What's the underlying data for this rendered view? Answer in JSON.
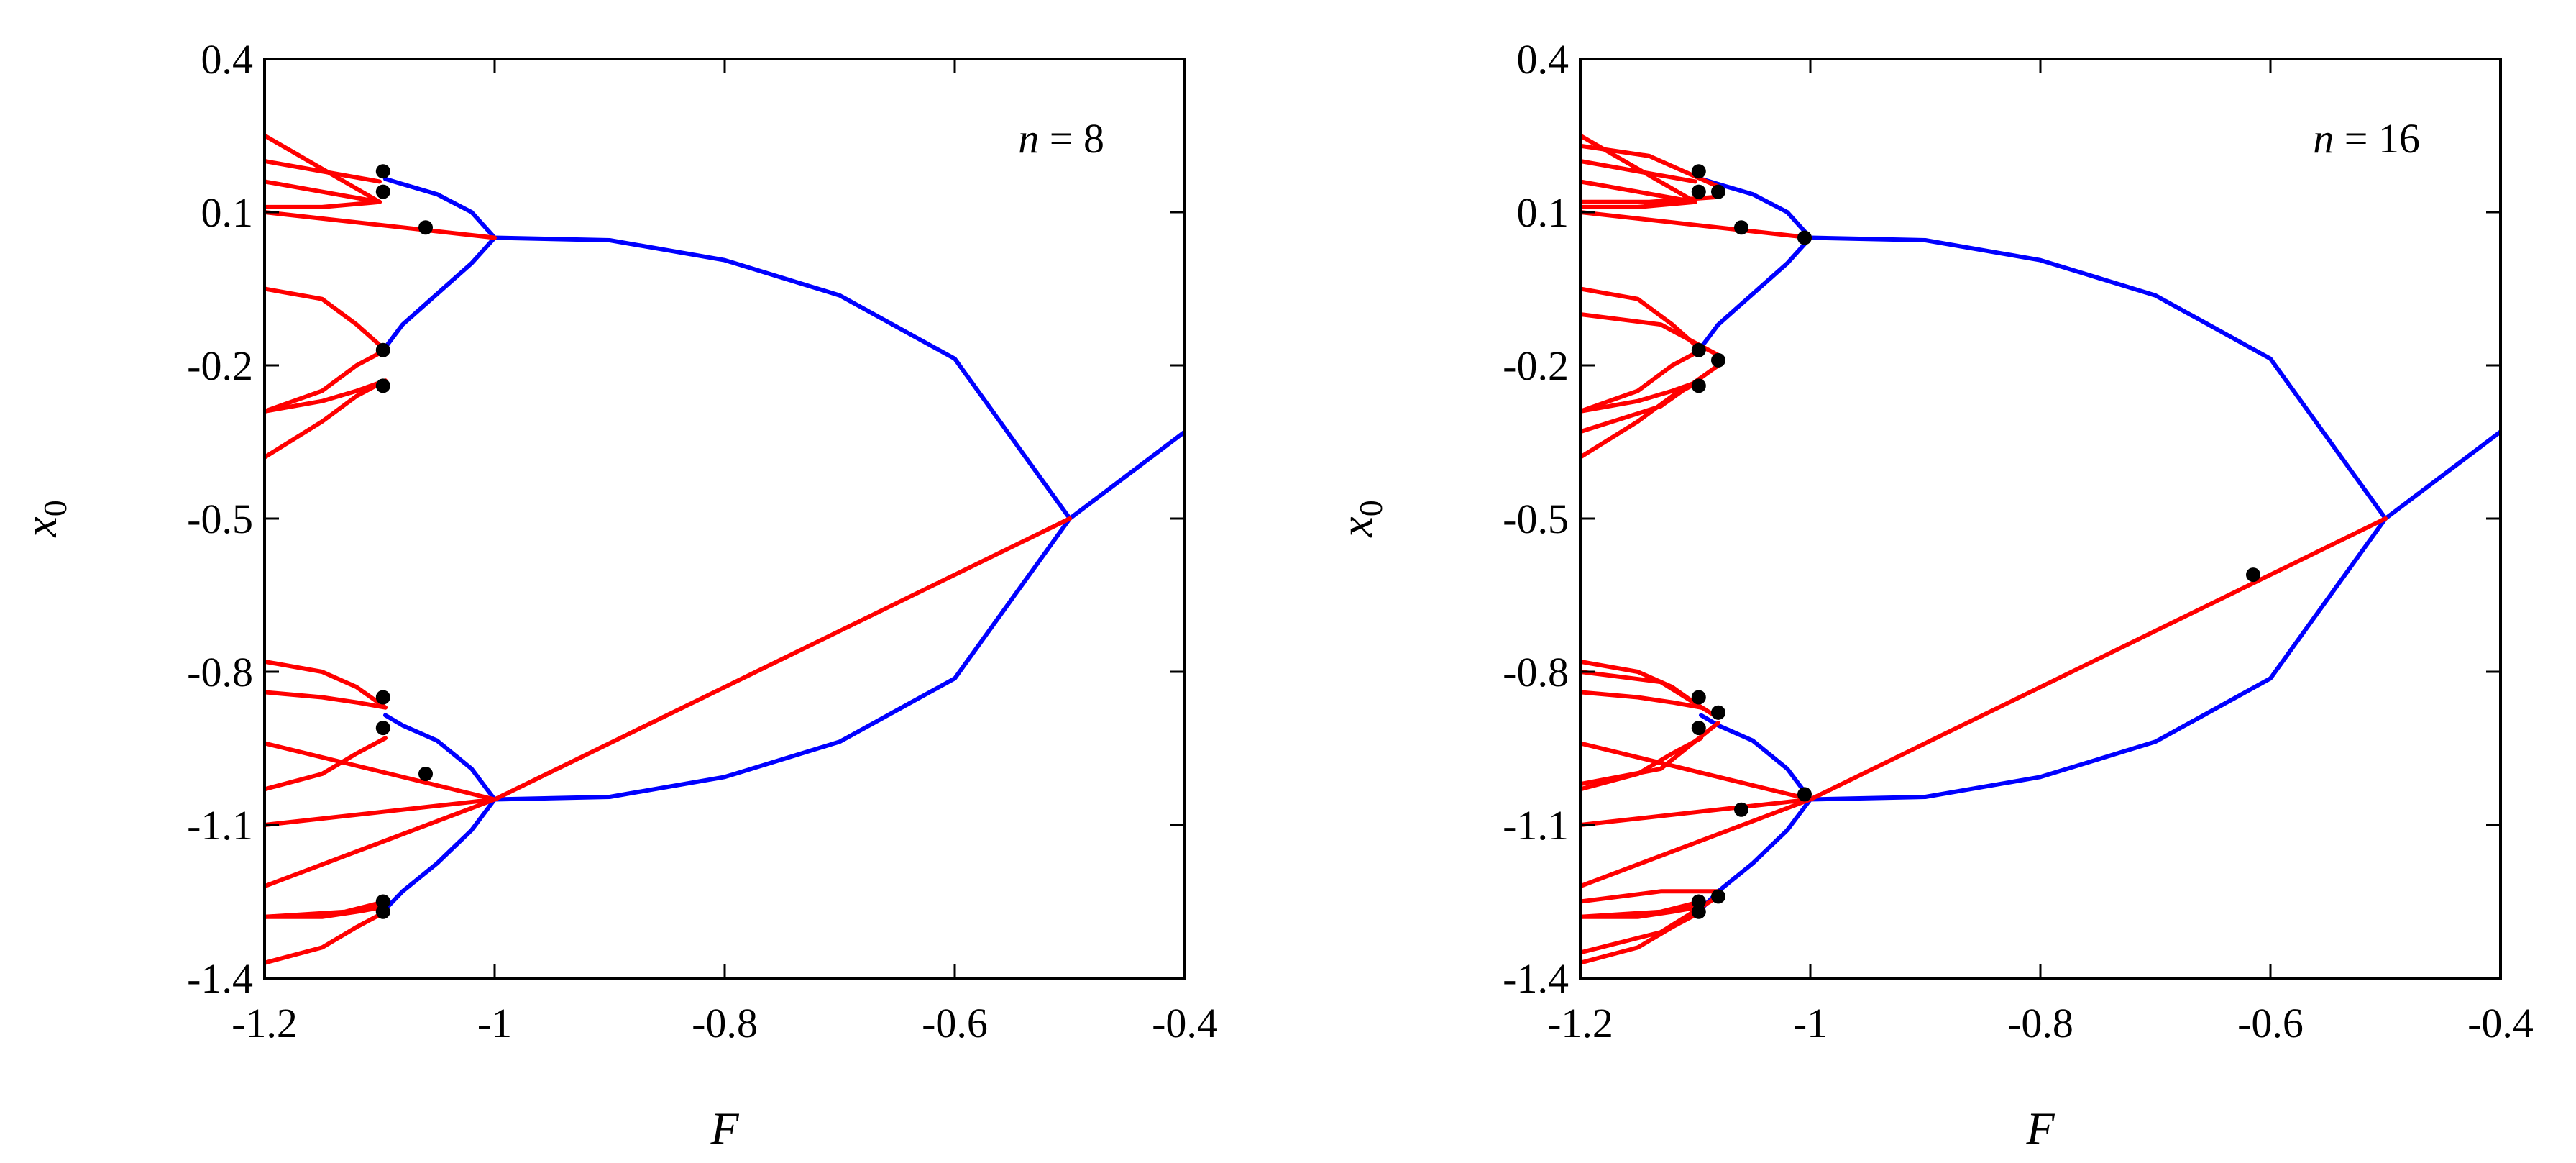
{
  "chart_data": [
    {
      "type": "line",
      "panel": "left",
      "annotation": {
        "var": "n",
        "eq": " = ",
        "val": "8"
      },
      "xlabel": "F",
      "ylabel": {
        "main": "x",
        "sub": "0"
      },
      "xlim": [
        -1.2,
        -0.4
      ],
      "ylim": [
        -1.4,
        0.4
      ],
      "xticks": [
        "-1.2",
        "-1",
        "-0.8",
        "-0.6",
        "-0.4"
      ],
      "yticks": [
        "0.4",
        "0.1",
        "-0.2",
        "-0.5",
        "-0.8",
        "-1.1",
        "-1.4"
      ],
      "grid": false,
      "colors": {
        "stable": "#0000ff",
        "unstable": "#ff0000",
        "bifurcation_point": "#000000"
      },
      "series": [
        {
          "color": "#0000ff",
          "x": [
            -0.5,
            -0.6,
            -0.7,
            -0.8,
            -0.9,
            -1.0
          ],
          "y": [
            -0.5,
            -0.187,
            -0.063,
            0.006,
            0.045,
            0.05
          ]
        },
        {
          "color": "#0000ff",
          "x": [
            -0.5,
            -0.6,
            -0.7,
            -0.8,
            -0.9,
            -1.0
          ],
          "y": [
            -0.5,
            -0.813,
            -0.937,
            -1.006,
            -1.045,
            -1.05
          ]
        },
        {
          "color": "#0000ff",
          "x": [
            -0.5,
            -0.4
          ],
          "y": [
            -0.5,
            -0.33
          ]
        },
        {
          "color": "#ff0000",
          "x": [
            -0.5,
            -1.0
          ],
          "y": [
            -0.5,
            -1.05
          ]
        },
        {
          "color": "#0000ff",
          "x": [
            -1.0,
            -1.02,
            -1.05,
            -1.08,
            -1.095
          ],
          "y": [
            0.05,
            0.1,
            0.135,
            0.155,
            0.165
          ]
        },
        {
          "color": "#0000ff",
          "x": [
            -1.0,
            -1.02,
            -1.05,
            -1.08,
            -1.095
          ],
          "y": [
            0.05,
            0.0,
            -0.06,
            -0.12,
            -0.165
          ]
        },
        {
          "color": "#0000ff",
          "x": [
            -1.0,
            -1.02,
            -1.05,
            -1.08,
            -1.095
          ],
          "y": [
            -1.05,
            -0.99,
            -0.935,
            -0.905,
            -0.885
          ]
        },
        {
          "color": "#0000ff",
          "x": [
            -1.0,
            -1.02,
            -1.05,
            -1.08,
            -1.095
          ],
          "y": [
            -1.05,
            -1.11,
            -1.175,
            -1.23,
            -1.265
          ]
        },
        {
          "color": "#ff0000",
          "x": [
            -1.0,
            -1.2
          ],
          "y": [
            0.05,
            0.1
          ]
        },
        {
          "color": "#ff0000",
          "x": [
            -1.0,
            -1.2
          ],
          "y": [
            -1.05,
            -1.1
          ]
        },
        {
          "color": "#ff0000",
          "x": [
            -1.0,
            -1.2
          ],
          "y": [
            -1.05,
            -1.22
          ]
        },
        {
          "color": "#ff0000",
          "x": [
            -1.0,
            -1.2
          ],
          "y": [
            -1.05,
            -0.94
          ]
        },
        {
          "color": "#ff0000",
          "x": [
            -1.1,
            -1.2
          ],
          "y": [
            0.12,
            0.16
          ]
        },
        {
          "color": "#ff0000",
          "x": [
            -1.1,
            -1.2
          ],
          "y": [
            0.12,
            0.25
          ]
        },
        {
          "color": "#ff0000",
          "x": [
            -1.1,
            -1.2
          ],
          "y": [
            0.16,
            0.2
          ]
        },
        {
          "color": "#ff0000",
          "x": [
            -1.1,
            -1.15,
            -1.2
          ],
          "y": [
            0.12,
            0.11,
            0.11
          ]
        },
        {
          "color": "#ff0000",
          "x": [
            -1.095,
            -1.12,
            -1.15,
            -1.2
          ],
          "y": [
            -0.17,
            -0.2,
            -0.25,
            -0.29
          ]
        },
        {
          "color": "#ff0000",
          "x": [
            -1.095,
            -1.12,
            -1.15,
            -1.2
          ],
          "y": [
            -0.17,
            -0.12,
            -0.07,
            -0.05
          ]
        },
        {
          "color": "#ff0000",
          "x": [
            -1.095,
            -1.12,
            -1.15,
            -1.2
          ],
          "y": [
            -0.23,
            -0.26,
            -0.31,
            -0.38
          ]
        },
        {
          "color": "#ff0000",
          "x": [
            -1.095,
            -1.12,
            -1.15,
            -1.2
          ],
          "y": [
            -0.23,
            -0.25,
            -0.27,
            -0.29
          ]
        },
        {
          "color": "#ff0000",
          "x": [
            -1.095,
            -1.12,
            -1.15,
            -1.2
          ],
          "y": [
            -0.87,
            -0.86,
            -0.85,
            -0.84
          ]
        },
        {
          "color": "#ff0000",
          "x": [
            -1.095,
            -1.12,
            -1.15,
            -1.2
          ],
          "y": [
            -0.87,
            -0.83,
            -0.8,
            -0.78
          ]
        },
        {
          "color": "#ff0000",
          "x": [
            -1.095,
            -1.12,
            -1.15,
            -1.2
          ],
          "y": [
            -0.93,
            -0.96,
            -1.0,
            -1.03
          ]
        },
        {
          "color": "#ff0000",
          "x": [
            -1.095,
            -1.12,
            -1.15,
            -1.2
          ],
          "y": [
            -1.26,
            -1.27,
            -1.28,
            -1.28
          ]
        },
        {
          "color": "#ff0000",
          "x": [
            -1.095,
            -1.12,
            -1.15,
            -1.2
          ],
          "y": [
            -1.27,
            -1.3,
            -1.34,
            -1.37
          ]
        },
        {
          "color": "#ff0000",
          "x": [
            -1.095,
            -1.13,
            -1.2
          ],
          "y": [
            -1.25,
            -1.27,
            -1.28
          ]
        }
      ],
      "points": [
        {
          "x": -1.097,
          "y": 0.18
        },
        {
          "x": -1.097,
          "y": 0.14
        },
        {
          "x": -1.06,
          "y": 0.07
        },
        {
          "x": -1.097,
          "y": -0.17
        },
        {
          "x": -1.097,
          "y": -0.24
        },
        {
          "x": -1.097,
          "y": -0.85
        },
        {
          "x": -1.097,
          "y": -0.91
        },
        {
          "x": -1.06,
          "y": -1.0
        },
        {
          "x": -1.097,
          "y": -1.25
        },
        {
          "x": -1.097,
          "y": -1.27
        }
      ]
    },
    {
      "type": "line",
      "panel": "right",
      "annotation": {
        "var": "n",
        "eq": " = ",
        "val": "16"
      },
      "xlabel": "F",
      "ylabel": {
        "main": "x",
        "sub": "0"
      },
      "xlim": [
        -1.2,
        -0.4
      ],
      "ylim": [
        -1.4,
        0.4
      ],
      "xticks": [
        "-1.2",
        "-1",
        "-0.8",
        "-0.6",
        "-0.4"
      ],
      "yticks": [
        "0.4",
        "0.1",
        "-0.2",
        "-0.5",
        "-0.8",
        "-1.1",
        "-1.4"
      ],
      "grid": false,
      "colors": {
        "stable": "#0000ff",
        "unstable": "#ff0000",
        "bifurcation_point": "#000000"
      },
      "series": [
        {
          "color": "#0000ff",
          "x": [
            -0.5,
            -0.6,
            -0.7,
            -0.8,
            -0.9,
            -1.0
          ],
          "y": [
            -0.5,
            -0.187,
            -0.063,
            0.006,
            0.045,
            0.05
          ]
        },
        {
          "color": "#0000ff",
          "x": [
            -0.5,
            -0.6,
            -0.7,
            -0.8,
            -0.9,
            -1.0
          ],
          "y": [
            -0.5,
            -0.813,
            -0.937,
            -1.006,
            -1.045,
            -1.05
          ]
        },
        {
          "color": "#0000ff",
          "x": [
            -0.5,
            -0.4
          ],
          "y": [
            -0.5,
            -0.33
          ]
        },
        {
          "color": "#ff0000",
          "x": [
            -0.5,
            -1.0
          ],
          "y": [
            -0.5,
            -1.05
          ]
        },
        {
          "color": "#0000ff",
          "x": [
            -1.0,
            -1.02,
            -1.05,
            -1.08,
            -1.095
          ],
          "y": [
            0.05,
            0.1,
            0.135,
            0.155,
            0.165
          ]
        },
        {
          "color": "#0000ff",
          "x": [
            -1.0,
            -1.02,
            -1.05,
            -1.08,
            -1.095
          ],
          "y": [
            0.05,
            0.0,
            -0.06,
            -0.12,
            -0.165
          ]
        },
        {
          "color": "#0000ff",
          "x": [
            -1.0,
            -1.02,
            -1.05,
            -1.08,
            -1.095
          ],
          "y": [
            -1.05,
            -0.99,
            -0.935,
            -0.905,
            -0.885
          ]
        },
        {
          "color": "#0000ff",
          "x": [
            -1.0,
            -1.02,
            -1.05,
            -1.08,
            -1.095
          ],
          "y": [
            -1.05,
            -1.11,
            -1.175,
            -1.23,
            -1.265
          ]
        },
        {
          "color": "#ff0000",
          "x": [
            -1.0,
            -1.2
          ],
          "y": [
            0.05,
            0.1
          ]
        },
        {
          "color": "#ff0000",
          "x": [
            -1.0,
            -1.2
          ],
          "y": [
            -1.05,
            -1.1
          ]
        },
        {
          "color": "#ff0000",
          "x": [
            -1.0,
            -1.2
          ],
          "y": [
            -1.05,
            -1.22
          ]
        },
        {
          "color": "#ff0000",
          "x": [
            -1.0,
            -1.2
          ],
          "y": [
            -1.05,
            -0.94
          ]
        },
        {
          "color": "#ff0000",
          "x": [
            -1.1,
            -1.2
          ],
          "y": [
            0.12,
            0.16
          ]
        },
        {
          "color": "#ff0000",
          "x": [
            -1.1,
            -1.2
          ],
          "y": [
            0.12,
            0.25
          ]
        },
        {
          "color": "#ff0000",
          "x": [
            -1.1,
            -1.2
          ],
          "y": [
            0.16,
            0.2
          ]
        },
        {
          "color": "#ff0000",
          "x": [
            -1.1,
            -1.15,
            -1.2
          ],
          "y": [
            0.12,
            0.11,
            0.11
          ]
        },
        {
          "color": "#ff0000",
          "x": [
            -1.08,
            -1.14,
            -1.2
          ],
          "y": [
            0.15,
            0.21,
            0.23
          ]
        },
        {
          "color": "#ff0000",
          "x": [
            -1.08,
            -1.14,
            -1.2
          ],
          "y": [
            0.13,
            0.12,
            0.12
          ]
        },
        {
          "color": "#ff0000",
          "x": [
            -1.095,
            -1.12,
            -1.15,
            -1.2
          ],
          "y": [
            -0.17,
            -0.2,
            -0.25,
            -0.29
          ]
        },
        {
          "color": "#ff0000",
          "x": [
            -1.095,
            -1.12,
            -1.15,
            -1.2
          ],
          "y": [
            -0.17,
            -0.12,
            -0.07,
            -0.05
          ]
        },
        {
          "color": "#ff0000",
          "x": [
            -1.095,
            -1.12,
            -1.15,
            -1.2
          ],
          "y": [
            -0.23,
            -0.26,
            -0.31,
            -0.38
          ]
        },
        {
          "color": "#ff0000",
          "x": [
            -1.095,
            -1.12,
            -1.15,
            -1.2
          ],
          "y": [
            -0.23,
            -0.25,
            -0.27,
            -0.29
          ]
        },
        {
          "color": "#ff0000",
          "x": [
            -1.08,
            -1.13,
            -1.2
          ],
          "y": [
            -0.18,
            -0.12,
            -0.1
          ]
        },
        {
          "color": "#ff0000",
          "x": [
            -1.08,
            -1.13,
            -1.2
          ],
          "y": [
            -0.2,
            -0.28,
            -0.33
          ]
        },
        {
          "color": "#ff0000",
          "x": [
            -1.095,
            -1.12,
            -1.15,
            -1.2
          ],
          "y": [
            -0.87,
            -0.86,
            -0.85,
            -0.84
          ]
        },
        {
          "color": "#ff0000",
          "x": [
            -1.095,
            -1.12,
            -1.15,
            -1.2
          ],
          "y": [
            -0.87,
            -0.83,
            -0.8,
            -0.78
          ]
        },
        {
          "color": "#ff0000",
          "x": [
            -1.095,
            -1.12,
            -1.15,
            -1.2
          ],
          "y": [
            -0.93,
            -0.96,
            -1.0,
            -1.03
          ]
        },
        {
          "color": "#ff0000",
          "x": [
            -1.08,
            -1.13,
            -1.2
          ],
          "y": [
            -0.89,
            -0.82,
            -0.8
          ]
        },
        {
          "color": "#ff0000",
          "x": [
            -1.08,
            -1.13,
            -1.2
          ],
          "y": [
            -0.9,
            -0.99,
            -1.02
          ]
        },
        {
          "color": "#ff0000",
          "x": [
            -1.095,
            -1.12,
            -1.15,
            -1.2
          ],
          "y": [
            -1.26,
            -1.27,
            -1.28,
            -1.28
          ]
        },
        {
          "color": "#ff0000",
          "x": [
            -1.095,
            -1.12,
            -1.15,
            -1.2
          ],
          "y": [
            -1.27,
            -1.3,
            -1.34,
            -1.37
          ]
        },
        {
          "color": "#ff0000",
          "x": [
            -1.095,
            -1.13,
            -1.2
          ],
          "y": [
            -1.25,
            -1.27,
            -1.28
          ]
        },
        {
          "color": "#ff0000",
          "x": [
            -1.08,
            -1.13,
            -1.2
          ],
          "y": [
            -1.23,
            -1.23,
            -1.25
          ]
        },
        {
          "color": "#ff0000",
          "x": [
            -1.08,
            -1.13,
            -1.2
          ],
          "y": [
            -1.24,
            -1.31,
            -1.35
          ]
        }
      ],
      "points": [
        {
          "x": -1.097,
          "y": 0.18
        },
        {
          "x": -1.097,
          "y": 0.14
        },
        {
          "x": -1.08,
          "y": 0.14
        },
        {
          "x": -1.06,
          "y": 0.07
        },
        {
          "x": -1.005,
          "y": 0.05
        },
        {
          "x": -1.097,
          "y": -0.17
        },
        {
          "x": -1.08,
          "y": -0.19
        },
        {
          "x": -1.097,
          "y": -0.24
        },
        {
          "x": -0.615,
          "y": -0.61
        },
        {
          "x": -1.097,
          "y": -0.85
        },
        {
          "x": -1.08,
          "y": -0.88
        },
        {
          "x": -1.097,
          "y": -0.91
        },
        {
          "x": -1.005,
          "y": -1.04
        },
        {
          "x": -1.06,
          "y": -1.07
        },
        {
          "x": -1.08,
          "y": -1.24
        },
        {
          "x": -1.097,
          "y": -1.25
        },
        {
          "x": -1.097,
          "y": -1.27
        }
      ]
    }
  ]
}
